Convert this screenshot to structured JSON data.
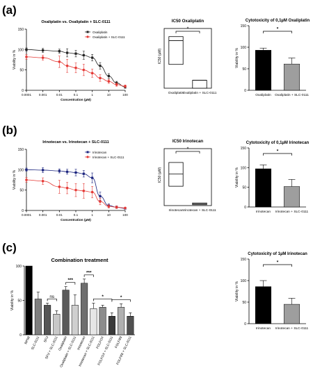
{
  "panel_labels": [
    "(a)",
    "(b)",
    "(c)"
  ],
  "chart_data": [
    {
      "type": "scatter",
      "title": "Oxaliplatin vs. Oxaliplatin + SLC-0111",
      "xlabel": "Concentration (µM)",
      "ylabel": "Viability in %",
      "xscale": "log",
      "xlim": [
        0.0001,
        100
      ],
      "ylim": [
        0,
        150
      ],
      "xticks": [
        "0.0001",
        "0.001",
        "0.01",
        "0.1",
        "1",
        "10",
        "100"
      ],
      "yticks": [
        "0",
        "50",
        "100",
        "150"
      ],
      "legend": "top-right",
      "series": [
        {
          "name": "Oxaliplatin",
          "color": "#222222",
          "marker": "square",
          "x": [
            0.0001,
            0.001,
            0.01,
            0.03,
            0.1,
            0.3,
            1,
            3,
            10,
            30,
            100
          ],
          "y": [
            100,
            98,
            96,
            92,
            90,
            86,
            80,
            60,
            35,
            18,
            8
          ],
          "err": [
            4,
            5,
            5,
            10,
            8,
            10,
            8,
            8,
            6,
            4,
            3
          ]
        },
        {
          "name": "Oxaliplatin + SLC-0111",
          "color": "#e53935",
          "marker": "circle",
          "x": [
            0.0001,
            0.001,
            0.01,
            0.03,
            0.1,
            0.3,
            1,
            3,
            10,
            30,
            100
          ],
          "y": [
            82,
            80,
            70,
            60,
            55,
            50,
            42,
            30,
            22,
            14,
            10
          ],
          "err": [
            6,
            6,
            14,
            16,
            12,
            14,
            10,
            8,
            5,
            4,
            3
          ]
        }
      ]
    },
    {
      "type": "box",
      "title": "IC50 Oxaliplatin",
      "ylabel": "IC50 (µM)",
      "categories": [
        "Oxaliplatin",
        "Oxaliplatin + SLC-0111"
      ],
      "ylim": [
        0,
        7
      ],
      "boxes": [
        {
          "min": 3.0,
          "median": 6.0,
          "max": 6.5
        },
        {
          "min": 0.0,
          "median": 1.0,
          "max": 1.0
        }
      ],
      "significance": "*"
    },
    {
      "type": "bar",
      "title": "Cytotoxicity of 0,1µM Oxaliplatin",
      "ylabel": "Viability in %",
      "categories": [
        "Oxaliplatin",
        "Oxaliplatin + SLC-0111"
      ],
      "values": [
        93,
        61
      ],
      "errors": [
        5,
        14
      ],
      "colors": [
        "#000000",
        "#9e9e9e"
      ],
      "ylim": [
        0,
        150
      ],
      "yticks": [
        "0",
        "50",
        "100",
        "150"
      ],
      "significance": "*"
    },
    {
      "type": "scatter",
      "title": "Irinotecan vs. Irinotecan + SLC-0111",
      "xlabel": "Concentration (µM)",
      "ylabel": "Viability in %",
      "xscale": "log",
      "xlim": [
        0.0001,
        100
      ],
      "ylim": [
        0,
        150
      ],
      "xticks": [
        "0.0001",
        "0.001",
        "0.01",
        "0.1",
        "1",
        "10",
        "100"
      ],
      "yticks": [
        "0",
        "50",
        "100",
        "150"
      ],
      "legend": "top-right",
      "series": [
        {
          "name": "Irinotecan",
          "color": "#1a237e",
          "marker": "square",
          "x": [
            0.0001,
            0.001,
            0.01,
            0.03,
            0.1,
            0.3,
            1,
            3,
            10,
            30,
            100
          ],
          "y": [
            100,
            99,
            97,
            95,
            93,
            90,
            80,
            35,
            12,
            8,
            5
          ],
          "err": [
            4,
            6,
            5,
            6,
            8,
            8,
            12,
            10,
            4,
            3,
            2
          ]
        },
        {
          "name": "Irinotecan + SLC-0111",
          "color": "#e53935",
          "marker": "circle",
          "x": [
            0.0001,
            0.001,
            0.01,
            0.03,
            0.1,
            0.3,
            1,
            3,
            10,
            30,
            100
          ],
          "y": [
            75,
            72,
            58,
            55,
            50,
            48,
            45,
            22,
            10,
            8,
            6
          ],
          "err": [
            6,
            8,
            16,
            14,
            16,
            18,
            14,
            8,
            4,
            3,
            2
          ]
        }
      ]
    },
    {
      "type": "box",
      "title": "IC50 Irinotecan",
      "ylabel": "IC50 (µM)",
      "categories": [
        "Irinotecan",
        "Irinotecan + SLC-0111"
      ],
      "ylim": [
        0,
        6
      ],
      "boxes": [
        {
          "min": 2.2,
          "median": 3.6,
          "max": 4.9
        },
        {
          "min": 0.1,
          "median": 0.2,
          "max": 0.3
        }
      ],
      "significance": "*"
    },
    {
      "type": "bar",
      "title": "Cytotoxicity of 0,1µM Irinotecan",
      "ylabel": "Viability in %",
      "categories": [
        "Irinotecan",
        "Irinotecan + SLC-0111"
      ],
      "values": [
        97,
        52
      ],
      "errors": [
        10,
        18
      ],
      "colors": [
        "#000000",
        "#9e9e9e"
      ],
      "ylim": [
        0,
        150
      ],
      "yticks": [
        "0",
        "50",
        "100",
        "150"
      ],
      "significance": "*"
    },
    {
      "type": "bar",
      "title": "Combination treatment",
      "ylabel": "Viability in %",
      "categories": [
        "RPMI",
        "SLC-0111",
        "5FU",
        "5FU + SLC-0111",
        "Oxaliplatin",
        "Oxaliplatin + SLC-0111",
        "Irinotecan",
        "Irinotecan + SLC-0111",
        "FOLFOX",
        "FOLFOX + SLC-0111",
        "FOLFIRI",
        "FOLFIRI + SLC-0111"
      ],
      "values": [
        100,
        52,
        43,
        30,
        65,
        43,
        75,
        38,
        40,
        27,
        40,
        27
      ],
      "errors": [
        0,
        10,
        3,
        5,
        5,
        15,
        6,
        8,
        3,
        5,
        5,
        5
      ],
      "colors": [
        "#000000",
        "#7f7f7f",
        "#555555",
        "#c8c8c8",
        "#5a5a5a",
        "#cfcfcf",
        "#6e6e6e",
        "#e6e6e6",
        "#8c8c8c",
        "#3a3a3a",
        "#b0b0b0",
        "#505050"
      ],
      "ylim": [
        0,
        100
      ],
      "yticks": [
        "0",
        "50",
        "100"
      ],
      "significance": [
        {
          "from": 2,
          "to": 3,
          "label": "ns"
        },
        {
          "from": 4,
          "to": 5,
          "label": "***"
        },
        {
          "from": 6,
          "to": 7,
          "label": "***"
        },
        {
          "from": 7,
          "to": 9,
          "label": "*"
        },
        {
          "from": 9,
          "to": 11,
          "label": "*"
        }
      ]
    },
    {
      "type": "bar",
      "title": "Cytotoxicity of 1µM Irinotecan",
      "ylabel": "Viability in %",
      "categories": [
        "Irinotecan",
        "Irinotecan + SLC-0111"
      ],
      "values": [
        86,
        45
      ],
      "errors": [
        14,
        14
      ],
      "colors": [
        "#000000",
        "#9e9e9e"
      ],
      "ylim": [
        0,
        150
      ],
      "yticks": [
        "0",
        "50",
        "100",
        "150"
      ],
      "significance": "*"
    }
  ]
}
